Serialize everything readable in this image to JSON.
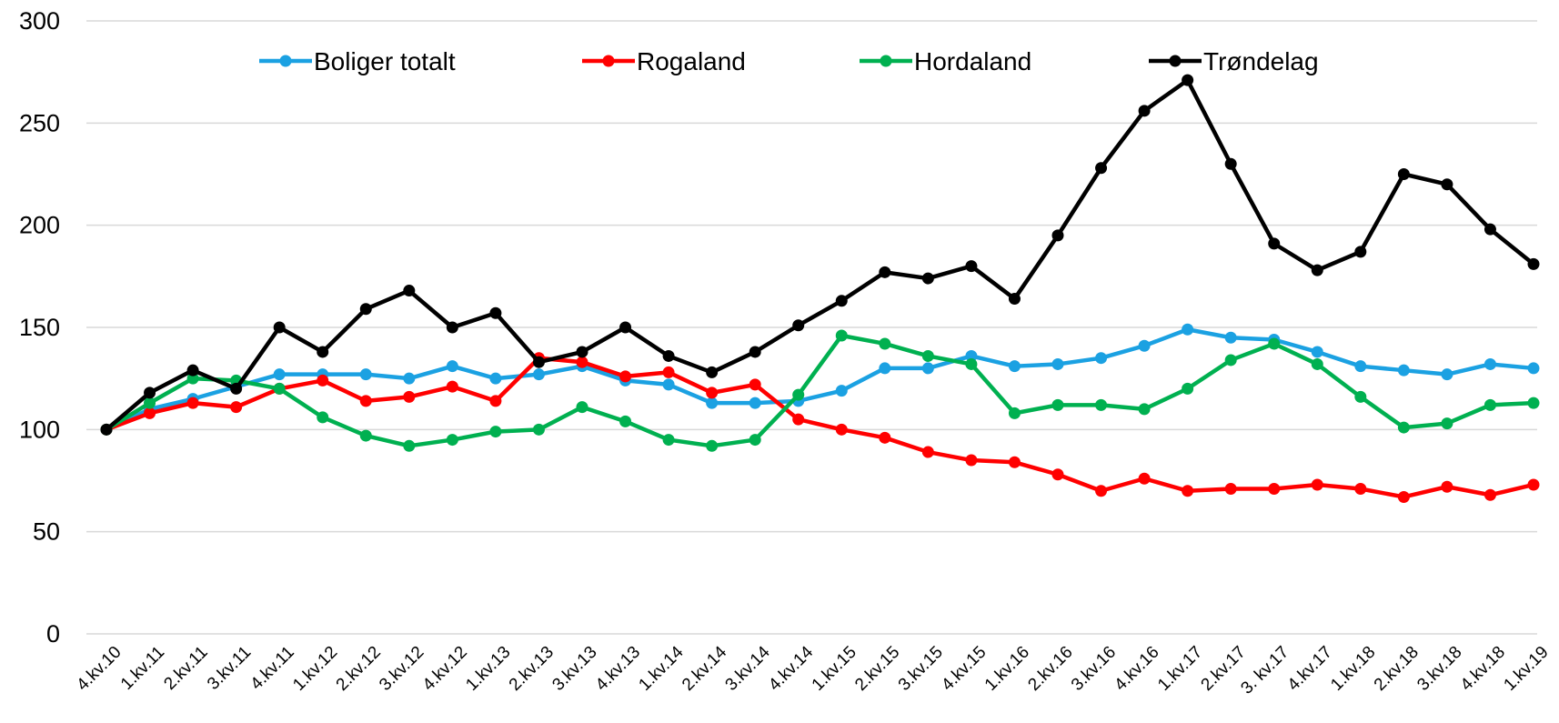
{
  "chart_data": {
    "type": "line",
    "categories": [
      "4.kv.10",
      "1.kv.11",
      "2.kv.11",
      "3.kv.11",
      "4.kv.11",
      "1.kv.12",
      "2.kv.12",
      "3.kv.12",
      "4.kv.12",
      "1.kv.13",
      "2.kv.13",
      "3.kv.13",
      "4.kv.13",
      "1.kv.14",
      "2.kv.14",
      "3.kv.14",
      "4.kv.14",
      "1.kv.15",
      "2.kv.15",
      "3.kv.15",
      "4.kv.15",
      "1.kv.16",
      "2.kv.16",
      "3.kv.16",
      "4.kv.16",
      "1.kv.17",
      "2.kv.17",
      "3. kv.17",
      "4.kv.17",
      "1.kv.18",
      "2.kv.18",
      "3.kv.18",
      "4.kv.18",
      "1.kv.19"
    ],
    "series": [
      {
        "name": "Boliger totalt",
        "color": "#1ba1e2",
        "values": [
          100,
          110,
          115,
          121,
          127,
          127,
          127,
          125,
          131,
          125,
          127,
          131,
          124,
          122,
          113,
          113,
          114,
          119,
          130,
          130,
          136,
          131,
          132,
          135,
          141,
          149,
          145,
          144,
          138,
          131,
          129,
          127,
          132,
          130
        ]
      },
      {
        "name": "Rogaland",
        "color": "#ff0000",
        "values": [
          100,
          108,
          113,
          111,
          120,
          124,
          114,
          116,
          121,
          114,
          135,
          133,
          126,
          128,
          118,
          122,
          105,
          100,
          96,
          89,
          85,
          84,
          78,
          70,
          76,
          70,
          71,
          71,
          73,
          71,
          67,
          72,
          68,
          73
        ]
      },
      {
        "name": "Hordaland",
        "color": "#00b050",
        "values": [
          100,
          113,
          125,
          124,
          120,
          106,
          97,
          92,
          95,
          99,
          100,
          111,
          104,
          95,
          92,
          95,
          117,
          146,
          142,
          136,
          132,
          108,
          112,
          112,
          110,
          120,
          134,
          142,
          132,
          116,
          101,
          103,
          112,
          113
        ]
      },
      {
        "name": "Trøndelag",
        "color": "#000000",
        "values": [
          100,
          118,
          129,
          120,
          150,
          138,
          159,
          168,
          150,
          157,
          133,
          138,
          150,
          136,
          128,
          138,
          151,
          163,
          177,
          174,
          180,
          164,
          195,
          228,
          256,
          271,
          230,
          191,
          178,
          187,
          225,
          220,
          198,
          181
        ]
      }
    ],
    "ylim": [
      0,
      300
    ],
    "yticks": [
      0,
      50,
      100,
      150,
      200,
      250,
      300
    ],
    "grid": true,
    "legend": "top"
  }
}
